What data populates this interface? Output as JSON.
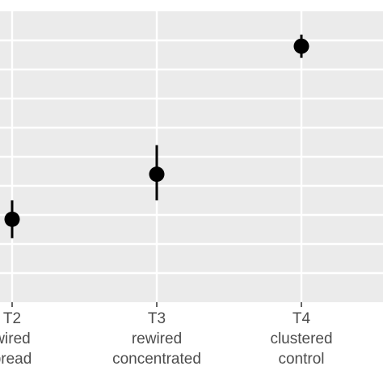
{
  "chart_data": {
    "type": "scatter",
    "subtype": "point-with-error-bars",
    "grid": true,
    "legend": "none",
    "colors": {
      "panel_background": "#ebebeb",
      "gridline": "#ffffff",
      "point": "#000000",
      "tick_label": "#4d4d4d"
    },
    "categories": [
      {
        "id": "T2",
        "lines": [
          "T2",
          "wired",
          "bread"
        ]
      },
      {
        "id": "T3",
        "lines": [
          "T3",
          "rewired",
          "concentrated"
        ]
      },
      {
        "id": "T4",
        "lines": [
          "T4",
          "clustered",
          "control"
        ]
      }
    ],
    "series": [
      {
        "points": [
          {
            "category": "T2",
            "y": 0.285,
            "ymin": 0.22,
            "ymax": 0.35
          },
          {
            "category": "T3",
            "y": 0.44,
            "ymin": 0.35,
            "ymax": 0.54
          },
          {
            "category": "T4",
            "y": 0.88,
            "ymin": 0.84,
            "ymax": 0.92
          }
        ]
      }
    ],
    "ylim": [
      0.0,
      1.0
    ],
    "y_gridlines": [
      0.1,
      0.2,
      0.3,
      0.4,
      0.5,
      0.6,
      0.7,
      0.8,
      0.9
    ]
  }
}
